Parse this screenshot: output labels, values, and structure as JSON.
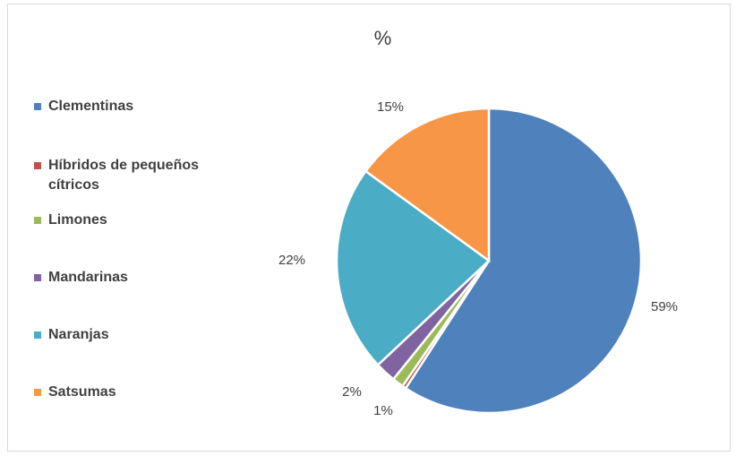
{
  "chart_data": {
    "type": "pie",
    "title": "%",
    "legend_position": "left",
    "categories": [
      "Clementinas",
      "Híbridos de pequeños cítricos",
      "Limones",
      "Mandarinas",
      "Naranjas",
      "Satsumas"
    ],
    "values": [
      59.2,
      0.4,
      1.2,
      2.2,
      22.0,
      15.0
    ],
    "data_labels": [
      "59%",
      "",
      "1%",
      "2%",
      "22%",
      "15%"
    ],
    "colors": [
      "#4F81BD",
      "#C0504D",
      "#9BBB59",
      "#8064A2",
      "#4BACC6",
      "#F79646"
    ]
  }
}
